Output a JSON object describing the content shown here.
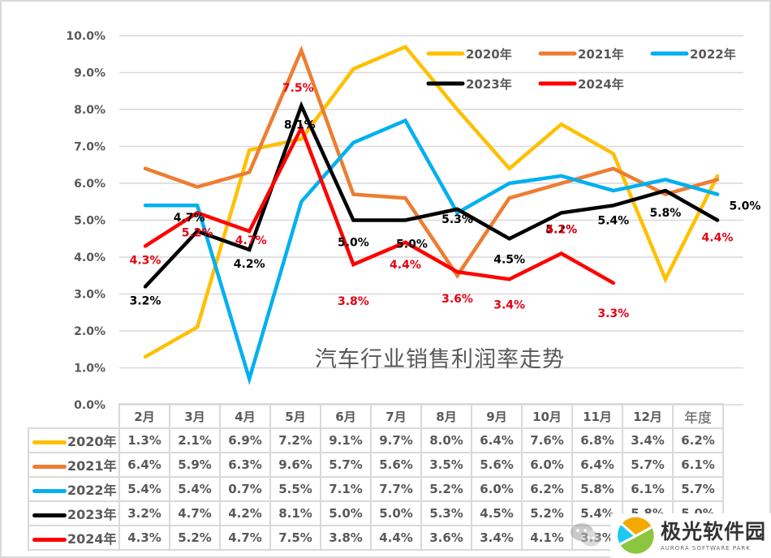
{
  "chart_data": {
    "type": "line",
    "title": "汽车行业销售利润率走势",
    "xlabel": "",
    "ylabel": "",
    "ylim": [
      0.0,
      10.0
    ],
    "y_ticks": [
      "0.0%",
      "1.0%",
      "2.0%",
      "3.0%",
      "4.0%",
      "5.0%",
      "6.0%",
      "7.0%",
      "8.0%",
      "9.0%",
      "10.0%"
    ],
    "grid": true,
    "legend_position": "top-right",
    "categories": [
      "2月",
      "3月",
      "4月",
      "5月",
      "6月",
      "7月",
      "8月",
      "9月",
      "10月",
      "11月",
      "12月",
      "年度"
    ],
    "series": [
      {
        "name": "2020年",
        "color": "#FFC000",
        "values": [
          1.3,
          2.1,
          6.9,
          7.2,
          9.1,
          9.7,
          8.0,
          6.4,
          7.6,
          6.8,
          3.4,
          6.2
        ],
        "labels_shown": false
      },
      {
        "name": "2021年",
        "color": "#ED7D31",
        "values": [
          6.4,
          5.9,
          6.3,
          9.6,
          5.7,
          5.6,
          3.5,
          5.6,
          6.0,
          6.4,
          5.7,
          6.1
        ],
        "labels_shown": false
      },
      {
        "name": "2022年",
        "color": "#00B0F0",
        "values": [
          5.4,
          5.4,
          0.7,
          5.5,
          7.1,
          7.7,
          5.2,
          6.0,
          6.2,
          5.8,
          6.1,
          5.7
        ],
        "labels_shown": false
      },
      {
        "name": "2023年",
        "color": "#000000",
        "values": [
          3.2,
          4.7,
          4.2,
          8.1,
          5.0,
          5.0,
          5.3,
          4.5,
          5.2,
          5.4,
          5.8,
          5.0
        ],
        "labels_shown": true
      },
      {
        "name": "2024年",
        "color": "#FF0000",
        "values": [
          4.3,
          5.2,
          4.7,
          7.5,
          3.8,
          4.4,
          3.6,
          3.4,
          4.1,
          3.3,
          null,
          4.4
        ],
        "labels_shown": true,
        "line_points_plotted": 10
      }
    ],
    "data_labels": {
      "2023年": [
        "3.2%",
        "4.7%",
        "4.2%",
        "8.1%",
        "5.0%",
        "5.0%",
        "5.3%",
        "4.5%",
        "5.2%",
        "5.4%",
        "5.8%",
        "5.0%"
      ],
      "2024年": [
        "4.3%",
        "5.2%",
        "4.7%",
        "7.5%",
        "3.8%",
        "4.4%",
        "3.6%",
        "3.4%",
        "4.1%",
        "3.3%",
        null,
        "4.4%"
      ]
    }
  },
  "table": {
    "headers": [
      "2月",
      "3月",
      "4月",
      "5月",
      "6月",
      "7月",
      "8月",
      "9月",
      "10月",
      "11月",
      "12月",
      "年度"
    ],
    "rows": [
      {
        "name": "2020年",
        "color": "#FFC000",
        "cells": [
          "1.3%",
          "2.1%",
          "6.9%",
          "7.2%",
          "9.1%",
          "9.7%",
          "8.0%",
          "6.4%",
          "7.6%",
          "6.8%",
          "3.4%",
          "6.2%"
        ]
      },
      {
        "name": "2021年",
        "color": "#ED7D31",
        "cells": [
          "6.4%",
          "5.9%",
          "6.3%",
          "9.6%",
          "5.7%",
          "5.6%",
          "3.5%",
          "5.6%",
          "6.0%",
          "6.4%",
          "5.7%",
          "6.1%"
        ]
      },
      {
        "name": "2022年",
        "color": "#00B0F0",
        "cells": [
          "5.4%",
          "5.4%",
          "0.7%",
          "5.5%",
          "7.1%",
          "7.7%",
          "5.2%",
          "6.0%",
          "6.2%",
          "5.8%",
          "6.1%",
          "5.7%"
        ]
      },
      {
        "name": "2023年",
        "color": "#000000",
        "cells": [
          "3.2%",
          "4.7%",
          "4.2%",
          "8.1%",
          "5.0%",
          "5.0%",
          "5.3%",
          "4.5%",
          "5.2%",
          "5.4%",
          "5.8%",
          "5.0%"
        ]
      },
      {
        "name": "2024年",
        "color": "#FF0000",
        "cells": [
          "4.3%",
          "5.2%",
          "4.7%",
          "7.5%",
          "3.8%",
          "4.4%",
          "3.6%",
          "3.4%",
          "4.1%",
          "3.3%",
          "",
          "4.4%"
        ]
      }
    ]
  },
  "watermark": {
    "brand_cn": "极光软件园",
    "brand_en": "AURORA SOFTWARE PARK",
    "partial_text": "公"
  }
}
